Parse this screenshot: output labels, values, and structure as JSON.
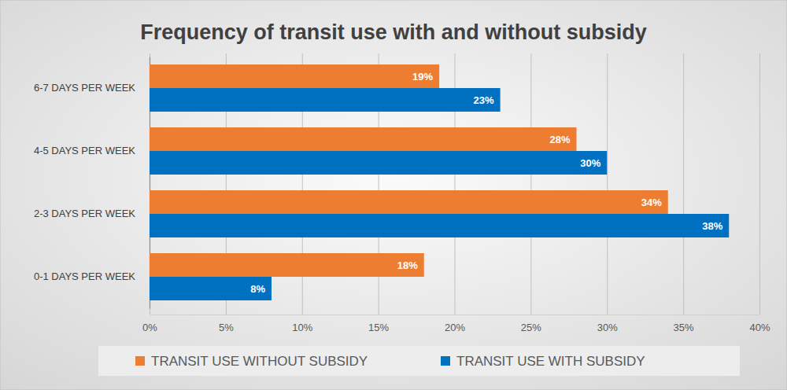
{
  "chart_data": {
    "type": "bar",
    "orientation": "horizontal",
    "title": "Frequency of transit use with and without subsidy",
    "categories": [
      "6-7 DAYS PER WEEK",
      "4-5 DAYS PER WEEK",
      "2-3 DAYS PER WEEK",
      "0-1 DAYS PER WEEK"
    ],
    "series": [
      {
        "name": "TRANSIT USE WITHOUT SUBSIDY",
        "color": "#ED7D31",
        "values": [
          19,
          28,
          34,
          18
        ],
        "value_labels": [
          "19%",
          "28%",
          "34%",
          "18%"
        ]
      },
      {
        "name": "TRANSIT USE WITH SUBSIDY",
        "color": "#0070C0",
        "values": [
          23,
          30,
          38,
          8
        ],
        "value_labels": [
          "23%",
          "30%",
          "38%",
          "8%"
        ]
      }
    ],
    "xlim": [
      0,
      40
    ],
    "xticks": [
      {
        "value": 0,
        "label": "0%"
      },
      {
        "value": 5,
        "label": "5%"
      },
      {
        "value": 10,
        "label": "10%"
      },
      {
        "value": 15,
        "label": "15%"
      },
      {
        "value": 20,
        "label": "20%"
      },
      {
        "value": 25,
        "label": "25%"
      },
      {
        "value": 30,
        "label": "30%"
      },
      {
        "value": 35,
        "label": "35%"
      },
      {
        "value": 40,
        "label": "40%"
      }
    ],
    "grid": true,
    "legend": "bottom",
    "data_labels": true
  }
}
